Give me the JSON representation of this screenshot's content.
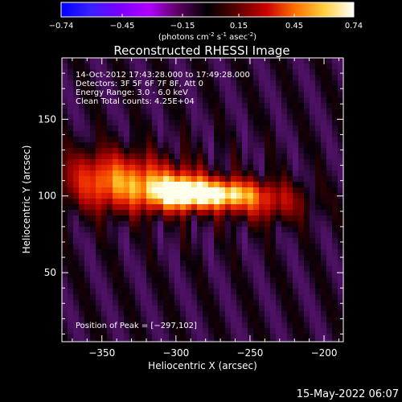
{
  "colorbar": {
    "ticks": [
      "-0.74",
      "-0.45",
      "-0.15",
      "0.15",
      "0.45",
      "0.74"
    ],
    "units_main": "(photons cm",
    "units_sup1": "-2",
    "units_mid": " s",
    "units_sup2": "-1",
    "units_end": " asec",
    "units_sup3": "-2",
    "units_close": ")",
    "colors": [
      "#0000ff",
      "#3a20ff",
      "#7a00ff",
      "#b000ff",
      "#5b0060",
      "#000000",
      "#5a0000",
      "#c80000",
      "#ff7000",
      "#ffd040",
      "#ffffff"
    ]
  },
  "chart_data": {
    "type": "heatmap",
    "title": "Reconstructed RHESSI Image",
    "xlabel": "Heliocentric X (arcsec)",
    "ylabel": "Heliocentric Y (arcsec)",
    "xlim": [
      -377,
      -187
    ],
    "ylim": [
      5,
      190
    ],
    "x_ticks": [
      -350,
      -300,
      -250,
      -200
    ],
    "x_tick_labels": [
      "−350",
      "−300",
      "−250",
      "−200"
    ],
    "y_ticks": [
      50,
      100,
      150
    ],
    "y_tick_labels": [
      "50",
      "100",
      "150"
    ],
    "peak": {
      "x": -297,
      "y": 102
    },
    "sources": [
      {
        "x": -297,
        "y": 102,
        "sx": 14,
        "sy": 7,
        "amp": 1.0
      },
      {
        "x": -268,
        "y": 101,
        "sx": 16,
        "sy": 6,
        "amp": 0.85
      },
      {
        "x": -320,
        "y": 107,
        "sx": 24,
        "sy": 11,
        "amp": 0.55
      },
      {
        "x": -350,
        "y": 111,
        "sx": 20,
        "sy": 13,
        "amp": 0.4
      },
      {
        "x": -240,
        "y": 96,
        "sx": 20,
        "sy": 9,
        "amp": 0.35
      }
    ],
    "annotations": [
      "14-Oct-2012 17:43:28.000 to 17:49:28.000",
      "Detectors: 3F 5F 6F 7F 8F, Att 0",
      "Energy Range: 3.0 - 6.0 keV",
      "Clean     Total counts: 4.25E+04"
    ],
    "peak_label": "Position of Peak = [−297,102]"
  },
  "footer": {
    "timestamp": "15-May-2022 06:07"
  }
}
